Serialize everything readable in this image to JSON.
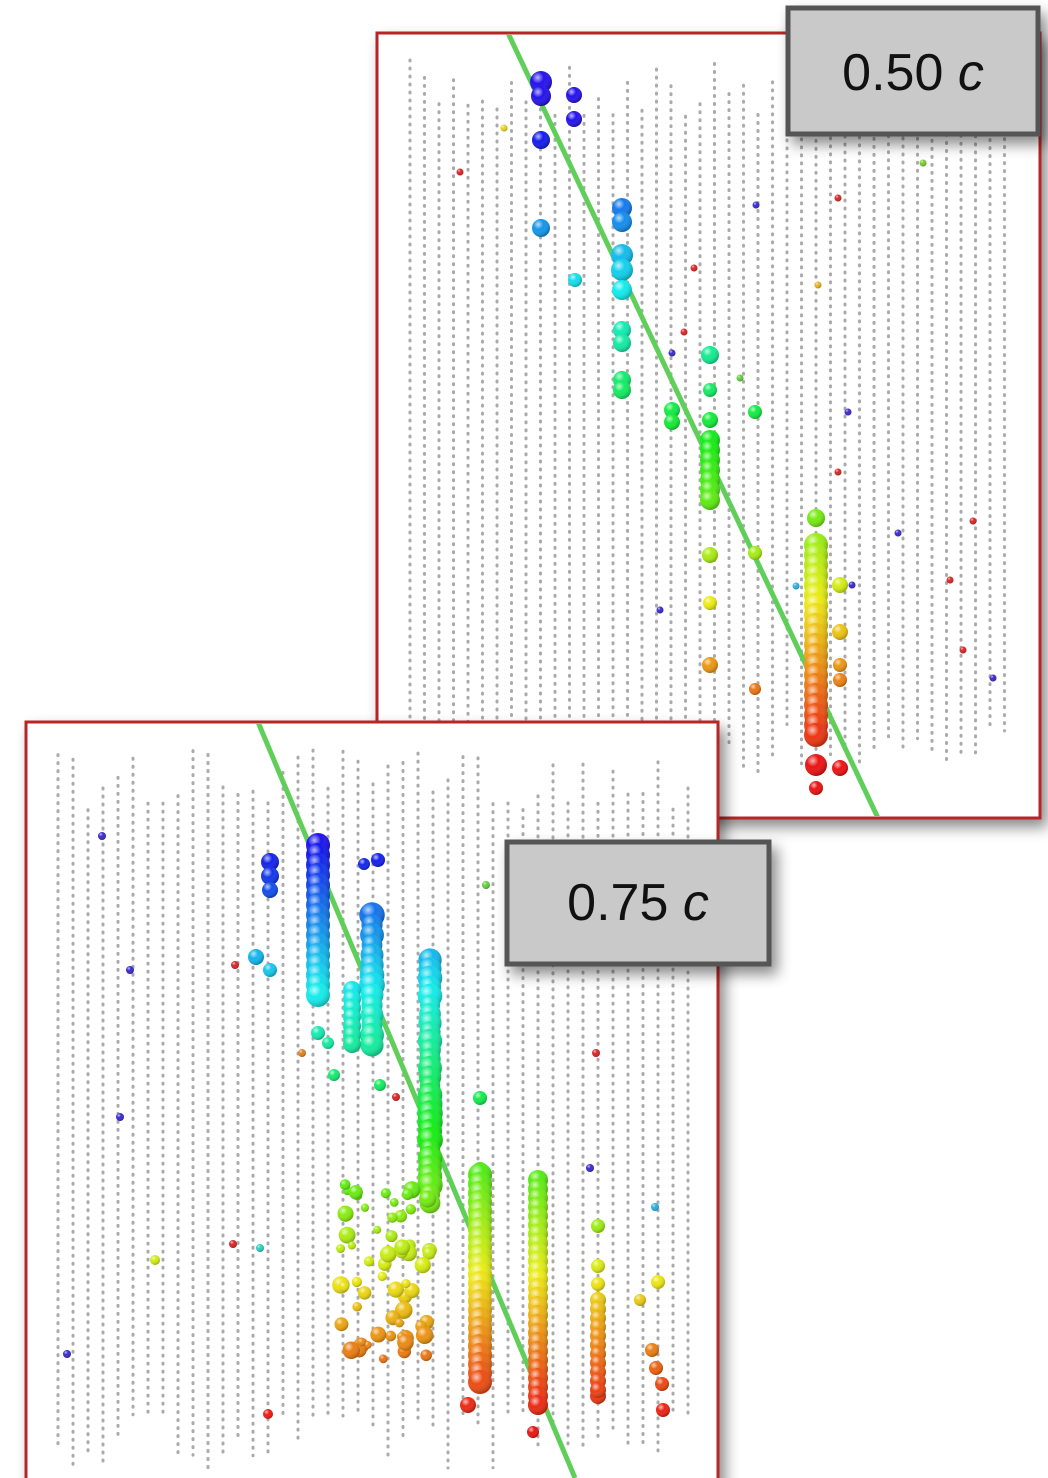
{
  "panels": [
    {
      "speed": "0.50",
      "unit": "c"
    },
    {
      "speed": "0.75",
      "unit": "c"
    }
  ]
}
